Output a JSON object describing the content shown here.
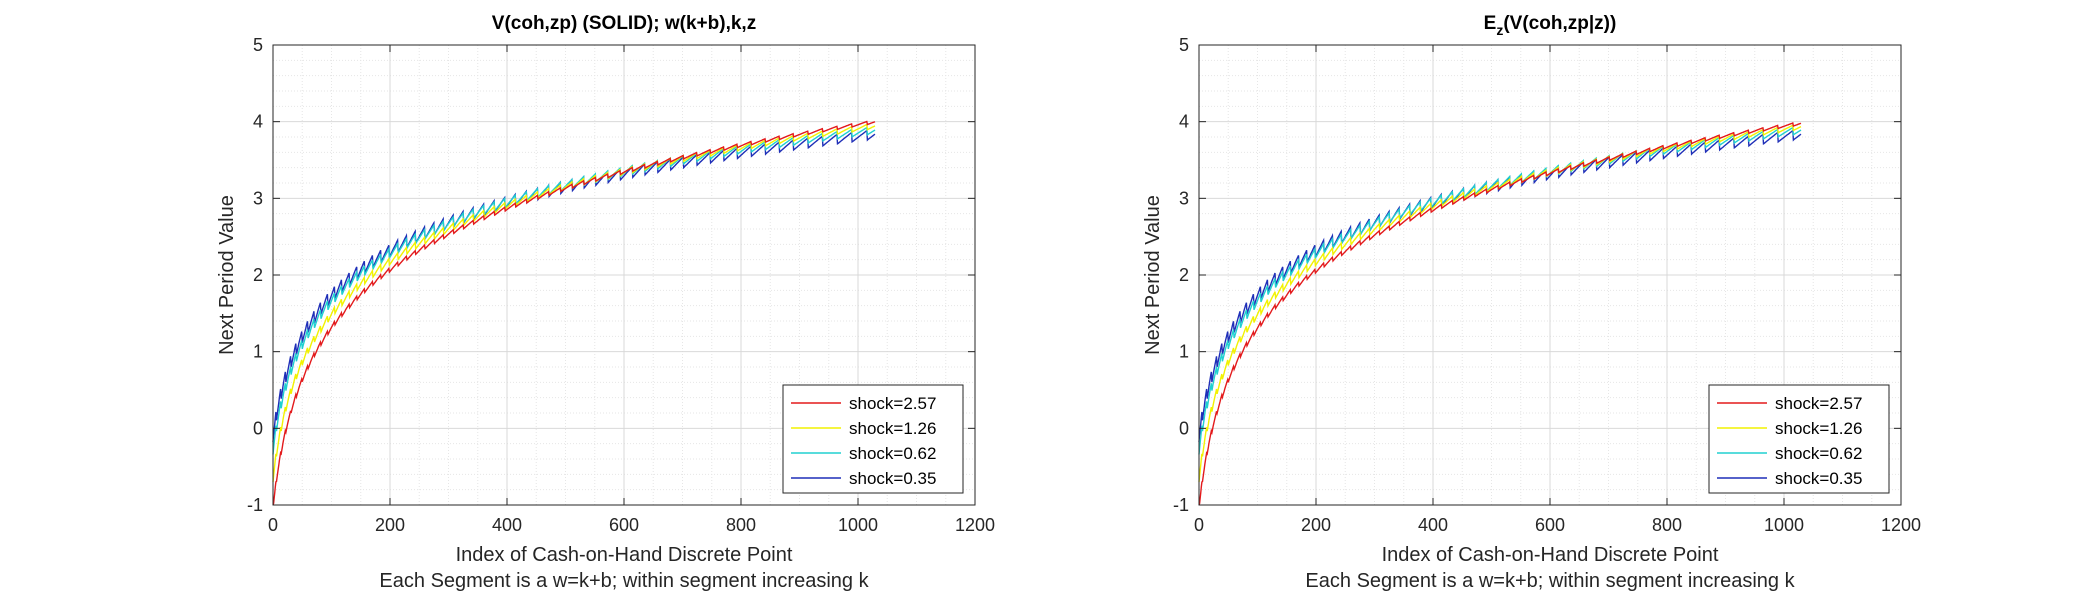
{
  "chart_data": [
    {
      "type": "line",
      "title": "V(coh,zp) (SOLID); w(k+b),k,z",
      "title_sub": "",
      "title_rest": "",
      "xlabel": "Index of Cash-on-Hand Discrete Point",
      "xlabel2": "Each Segment is a w=k+b; within segment increasing k",
      "ylabel": "Next Period Value",
      "xlim": [
        0,
        1200
      ],
      "ylim": [
        -1,
        5
      ],
      "xticks": [
        "0",
        "200",
        "400",
        "600",
        "800",
        "1000",
        "1200"
      ],
      "yticks": [
        "-1",
        "0",
        "1",
        "2",
        "3",
        "4",
        "5"
      ],
      "grid": true,
      "minor_grid": true,
      "legend_position": "bottom-right",
      "n_points": 1030,
      "segment_profile": "sawtooth segments; each segment is a w=k+b, value rises within segment as k increases",
      "series": [
        {
          "name": "shock=2.57",
          "color": "#e31a1c",
          "start": -1.0,
          "end": 4.02
        },
        {
          "name": "shock=1.26",
          "color": "#f2f200",
          "start": -0.6,
          "end": 3.98
        },
        {
          "name": "shock=0.62",
          "color": "#20d0d0",
          "start": -0.2,
          "end": 3.94
        },
        {
          "name": "shock=0.35",
          "color": "#1f2fb8",
          "start": 0.0,
          "end": 3.9
        }
      ]
    },
    {
      "type": "line",
      "title": "E",
      "title_sub": "z",
      "title_rest": "(V(coh,zp|z))",
      "xlabel": "Index of Cash-on-Hand Discrete Point",
      "xlabel2": "Each Segment is a w=k+b; within segment increasing k",
      "ylabel": "Next Period Value",
      "xlim": [
        0,
        1200
      ],
      "ylim": [
        -1,
        5
      ],
      "xticks": [
        "0",
        "200",
        "400",
        "600",
        "800",
        "1000",
        "1200"
      ],
      "yticks": [
        "-1",
        "0",
        "1",
        "2",
        "3",
        "4",
        "5"
      ],
      "grid": true,
      "minor_grid": true,
      "legend_position": "bottom-right",
      "n_points": 1030,
      "segment_profile": "sawtooth segments; each segment is a w=k+b, value rises within segment as k increases",
      "series": [
        {
          "name": "shock=2.57",
          "color": "#e31a1c",
          "start": -1.0,
          "end": 4.0
        },
        {
          "name": "shock=1.26",
          "color": "#f2f200",
          "start": -0.6,
          "end": 3.97
        },
        {
          "name": "shock=0.62",
          "color": "#20d0d0",
          "start": -0.2,
          "end": 3.94
        },
        {
          "name": "shock=0.35",
          "color": "#1f2fb8",
          "start": 0.0,
          "end": 3.9
        }
      ]
    }
  ]
}
